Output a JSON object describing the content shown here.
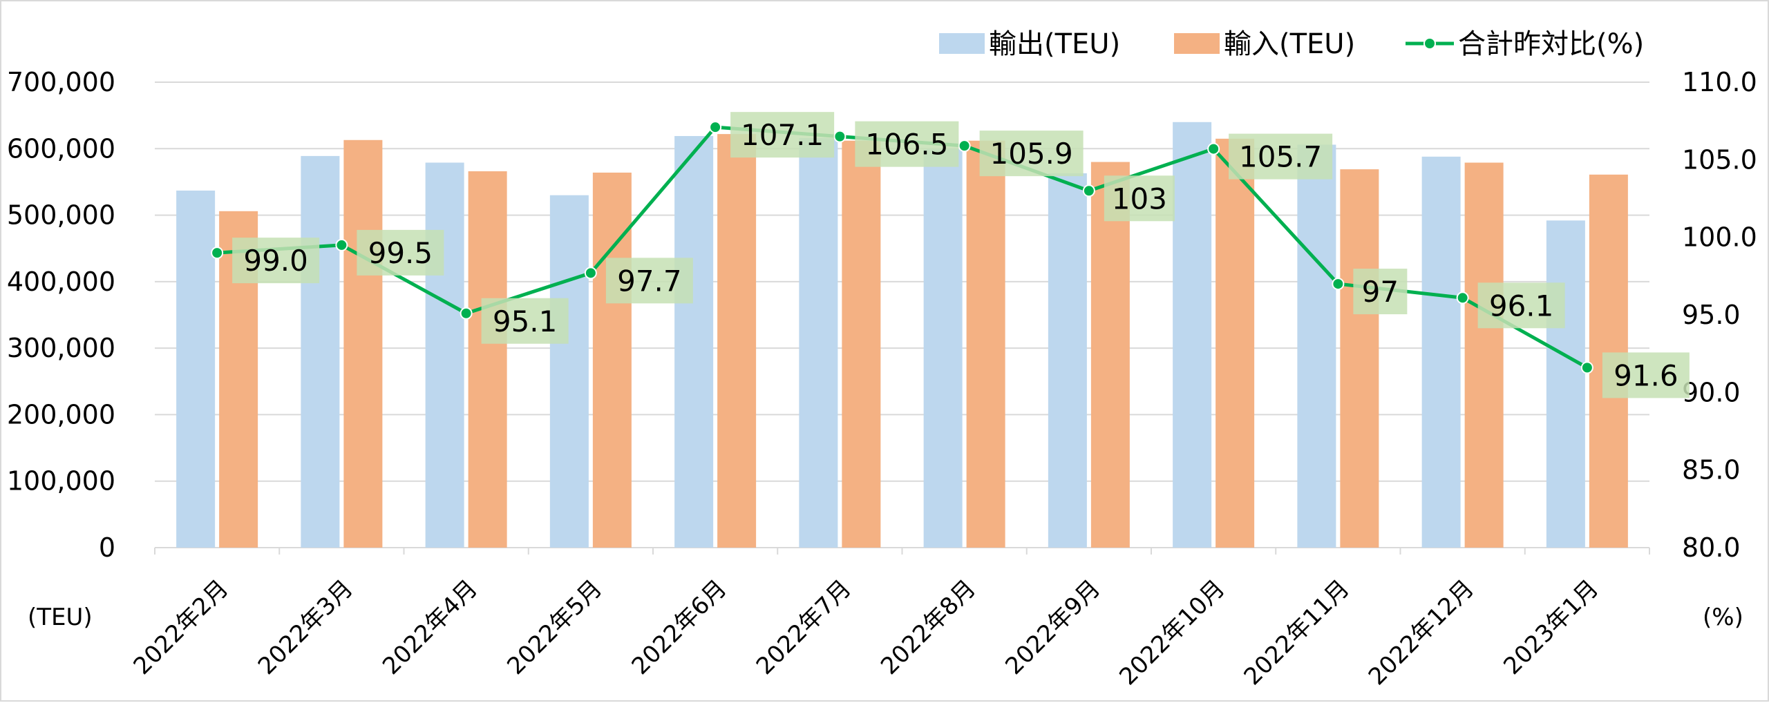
{
  "chart_data": {
    "type": "bar",
    "categories": [
      "2022年2月",
      "2022年3月",
      "2022年4月",
      "2022年5月",
      "2022年6月",
      "2022年7月",
      "2022年8月",
      "2022年9月",
      "2022年10月",
      "2022年11月",
      "2022年12月",
      "2023年1月"
    ],
    "series": [
      {
        "name": "輸出(TEU)",
        "type": "bar",
        "axis": "left",
        "color": "#bdd7ee",
        "values": [
          537000,
          589000,
          579000,
          530000,
          619000,
          616000,
          600000,
          563000,
          640000,
          606000,
          588000,
          492000
        ]
      },
      {
        "name": "輸入(TEU)",
        "type": "bar",
        "axis": "left",
        "color": "#f4b183",
        "values": [
          506000,
          613000,
          566000,
          564000,
          622000,
          612000,
          612000,
          580000,
          615000,
          569000,
          579000,
          561000
        ]
      },
      {
        "name": "合計昨対比(%)",
        "type": "line",
        "axis": "right",
        "color": "#00b050",
        "values": [
          99.0,
          99.5,
          95.1,
          97.7,
          107.1,
          106.5,
          105.9,
          103,
          105.7,
          97,
          96.1,
          91.6
        ],
        "labels": [
          "99.0",
          "99.5",
          "95.1",
          "97.7",
          "107.1",
          "106.5",
          "105.9",
          "103",
          "105.7",
          "97",
          "96.1",
          "91.6"
        ]
      }
    ],
    "y_left": {
      "ylim": [
        0,
        700000
      ],
      "ticks": [
        "0",
        "100,000",
        "200,000",
        "300,000",
        "400,000",
        "500,000",
        "600,000",
        "700,000"
      ],
      "unit": "(TEU)"
    },
    "y_right": {
      "ylim": [
        80,
        110
      ],
      "ticks": [
        "80.0",
        "85.0",
        "90.0",
        "95.0",
        "100.0",
        "105.0",
        "110.0"
      ],
      "unit": "(%)"
    },
    "grid": true,
    "legend": "top-right",
    "label_box_color": "#c5e0b4"
  }
}
